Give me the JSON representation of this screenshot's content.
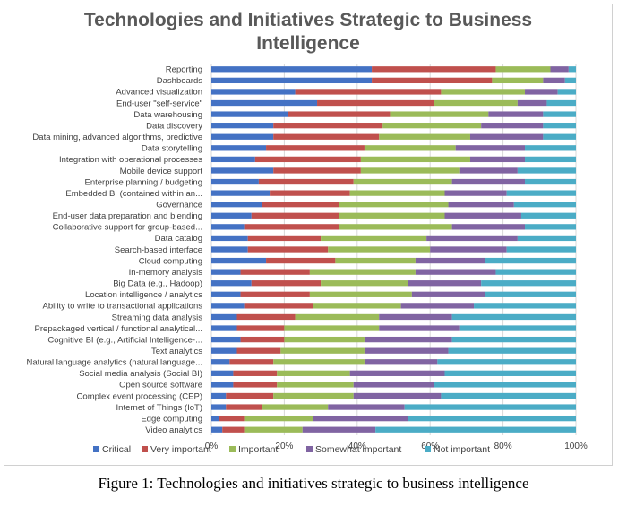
{
  "title_line1": "Technologies and Initiatives Strategic to Business",
  "title_line2": "Intelligence",
  "caption": "Figure 1: Technologies and initiatives strategic to business intelligence",
  "chart_data": {
    "type": "bar",
    "orientation": "horizontal",
    "stacked": "percent",
    "title": "Technologies and Initiatives Strategic to Business Intelligence",
    "xlim": [
      0,
      100
    ],
    "x_ticks": [
      "0%",
      "20%",
      "40%",
      "60%",
      "80%",
      "100%"
    ],
    "grid": true,
    "legend_position": "bottom",
    "categories": [
      "Reporting",
      "Dashboards",
      "Advanced visualization",
      "End-user \"self-service\"",
      "Data warehousing",
      "Data discovery",
      "Data mining, advanced algorithms, predictive",
      "Data storytelling",
      "Integration with operational processes",
      "Mobile device support",
      "Enterprise planning / budgeting",
      "Embedded BI (contained within an...",
      "Governance",
      "End-user data preparation and blending",
      "Collaborative support for group-based...",
      "Data catalog",
      "Search-based interface",
      "Cloud computing",
      "In-memory analysis",
      "Big Data (e.g., Hadoop)",
      "Location intelligence / analytics",
      "Ability to write to transactional applications",
      "Streaming data analysis",
      "Prepackaged vertical / functional analytical...",
      "Cognitive BI (e.g., Artificial Intelligence-...",
      "Text analytics",
      "Natural language analytics (natural language...",
      "Social media analysis (Social BI)",
      "Open source software",
      "Complex event processing (CEP)",
      "Internet of Things (IoT)",
      "Edge computing",
      "Video analytics"
    ],
    "series": [
      {
        "name": "Critical",
        "color": "#4472c4",
        "values": [
          44,
          44,
          23,
          29,
          21,
          17,
          17,
          15,
          12,
          17,
          13,
          16,
          14,
          11,
          9,
          10,
          10,
          15,
          8,
          11,
          8,
          9,
          7,
          7,
          8,
          7,
          5,
          6,
          6,
          4,
          4,
          2,
          3
        ]
      },
      {
        "name": "Very important",
        "color": "#c0504d",
        "values": [
          34,
          33,
          40,
          32,
          28,
          30,
          29,
          27,
          29,
          24,
          26,
          22,
          21,
          24,
          26,
          20,
          22,
          19,
          19,
          19,
          19,
          19,
          16,
          13,
          12,
          12,
          12,
          12,
          12,
          13,
          10,
          7,
          6
        ]
      },
      {
        "name": "Important",
        "color": "#9bbb59",
        "values": [
          15,
          14,
          23,
          23,
          27,
          27,
          25,
          25,
          30,
          27,
          27,
          26,
          30,
          29,
          31,
          29,
          28,
          22,
          29,
          24,
          28,
          24,
          23,
          26,
          22,
          23,
          25,
          20,
          21,
          22,
          18,
          19,
          16
        ]
      },
      {
        "name": "Somewhat important",
        "color": "#8064a2",
        "values": [
          5,
          6,
          9,
          8,
          15,
          17,
          20,
          19,
          15,
          16,
          20,
          17,
          18,
          21,
          20,
          25,
          21,
          19,
          22,
          20,
          20,
          20,
          20,
          22,
          24,
          23,
          20,
          26,
          22,
          24,
          21,
          26,
          20
        ]
      },
      {
        "name": "Not important",
        "color": "#4bacc6",
        "values": [
          2,
          3,
          5,
          8,
          9,
          9,
          9,
          14,
          14,
          16,
          14,
          19,
          17,
          15,
          14,
          16,
          19,
          25,
          22,
          26,
          25,
          28,
          34,
          32,
          34,
          35,
          38,
          36,
          39,
          37,
          47,
          46,
          55
        ]
      }
    ]
  }
}
